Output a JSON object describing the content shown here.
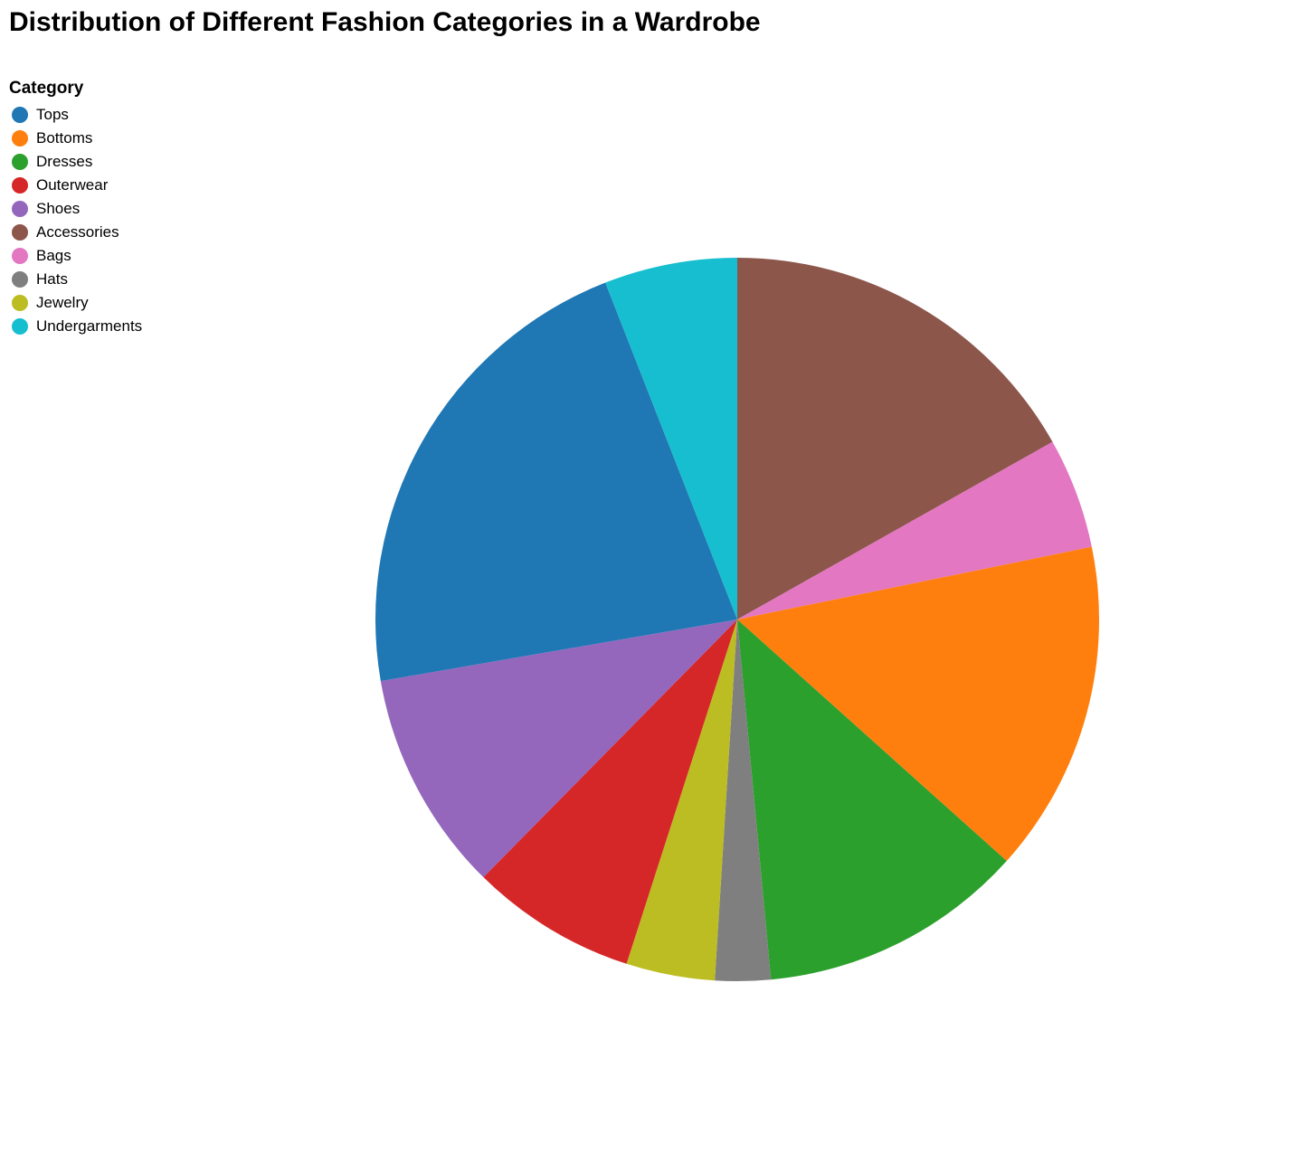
{
  "chart_data": {
    "type": "pie",
    "title": "Distribution of Different Fashion Categories in a Wardrobe",
    "legend_title": "Category",
    "legend_position": "top-left",
    "categories": [
      "Accessories",
      "Bags",
      "Bottoms",
      "Dresses",
      "Hats",
      "Jewelry",
      "Outerwear",
      "Shoes",
      "Tops",
      "Undergarments"
    ],
    "values": [
      17,
      5,
      15,
      12,
      2.5,
      4,
      7.5,
      10,
      22,
      6
    ],
    "legend_order": [
      "Tops",
      "Bottoms",
      "Dresses",
      "Outerwear",
      "Shoes",
      "Accessories",
      "Bags",
      "Hats",
      "Jewelry",
      "Undergarments"
    ],
    "colors": {
      "Tops": "#1f77b4",
      "Bottoms": "#ff7f0e",
      "Dresses": "#2ca02c",
      "Outerwear": "#d62728",
      "Shoes": "#9467bd",
      "Accessories": "#8c564b",
      "Bags": "#e377c2",
      "Hats": "#7f7f7f",
      "Jewelry": "#bcbd22",
      "Undergarments": "#17becf"
    }
  }
}
